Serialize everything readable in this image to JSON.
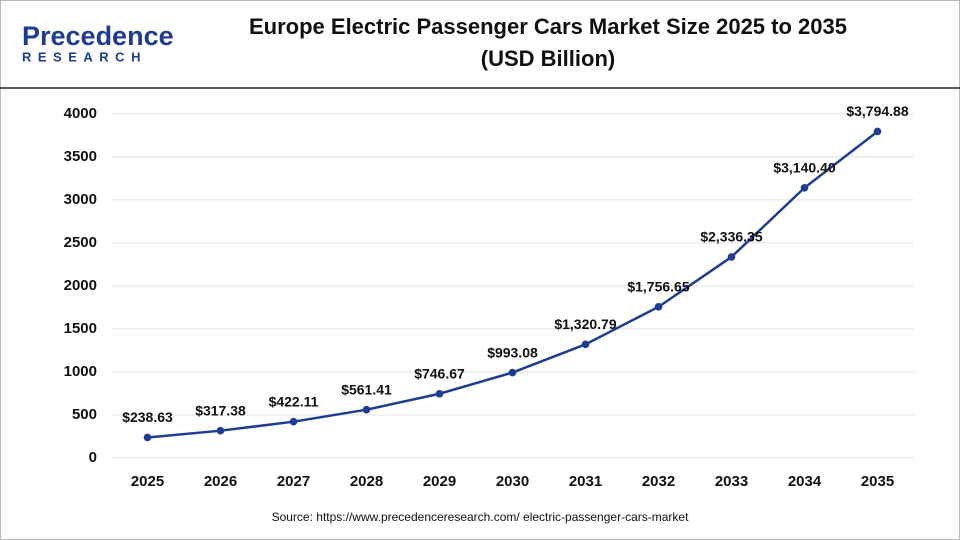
{
  "logo": {
    "name": "Precedence",
    "tagline": "RESEARCH"
  },
  "chart_data": {
    "type": "line",
    "title": "Europe Electric Passenger Cars Market Size 2025 to 2035",
    "subtitle": "(USD Billion)",
    "categories": [
      "2025",
      "2026",
      "2027",
      "2028",
      "2029",
      "2030",
      "2031",
      "2032",
      "2033",
      "2034",
      "2035"
    ],
    "values": [
      238.63,
      317.38,
      422.11,
      561.41,
      746.67,
      993.08,
      1320.79,
      1756.65,
      2336.35,
      3140.4,
      3794.88
    ],
    "value_labels": [
      "$238.63",
      "$317.38",
      "$422.11",
      "$561.41",
      "$746.67",
      "$993.08",
      "$1,320.79",
      "$1,756.65",
      "$2,336.35",
      "$3,140.40",
      "$3,794.88"
    ],
    "color": "#1f3c93",
    "ylim": [
      0,
      4300
    ],
    "yticks": [
      0,
      500,
      1000,
      1500,
      2000,
      2500,
      3000,
      3500,
      4000
    ],
    "grid": true,
    "source": "Source: https://www.precedenceresearch.com/ electric-passenger-cars-market"
  }
}
